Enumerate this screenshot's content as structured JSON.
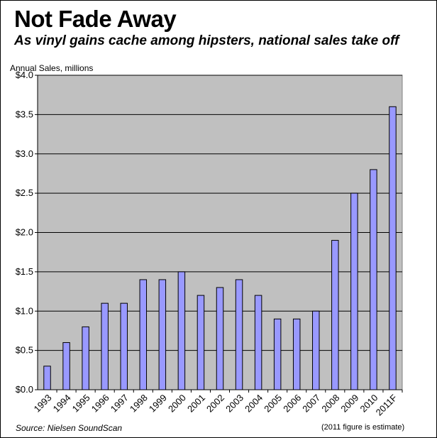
{
  "header": {
    "title": "Not Fade Away",
    "subtitle": "As vinyl gains cache among hipsters, national sales take off"
  },
  "footer": {
    "source": "Source:  Nielsen  SoundScan",
    "note": "(2011 figure is estimate)"
  },
  "colors": {
    "plot_background": "#c0c0c0",
    "bar_fill": "#9999ff",
    "bar_stroke": "#000000",
    "gridline": "#000000"
  },
  "chart_data": {
    "type": "bar",
    "title": "Not Fade Away",
    "subtitle": "As vinyl gains cache among hipsters, national sales take off",
    "xlabel": "",
    "ylabel": "Annual Sales, millions",
    "categories": [
      "1993",
      "1994",
      "1995",
      "1996",
      "1997",
      "1998",
      "1999",
      "2000",
      "2001",
      "2002",
      "2003",
      "2004",
      "2005",
      "2006",
      "2007",
      "2008",
      "2009",
      "2010",
      "2011F"
    ],
    "values": [
      0.3,
      0.6,
      0.8,
      1.1,
      1.1,
      1.4,
      1.4,
      1.5,
      1.2,
      1.3,
      1.4,
      1.2,
      0.9,
      0.9,
      1.0,
      1.9,
      2.5,
      2.8,
      3.6
    ],
    "ylim": [
      0,
      4.0
    ],
    "yticks": [
      0,
      0.5,
      1.0,
      1.5,
      2.0,
      2.5,
      3.0,
      3.5,
      4.0
    ],
    "ytick_labels": [
      "$0.0",
      "$0.5",
      "$1.0",
      "$1.5",
      "$2.0",
      "$2.5",
      "$3.0",
      "$3.5",
      "$4.0"
    ],
    "grid": true,
    "legend": "none"
  }
}
